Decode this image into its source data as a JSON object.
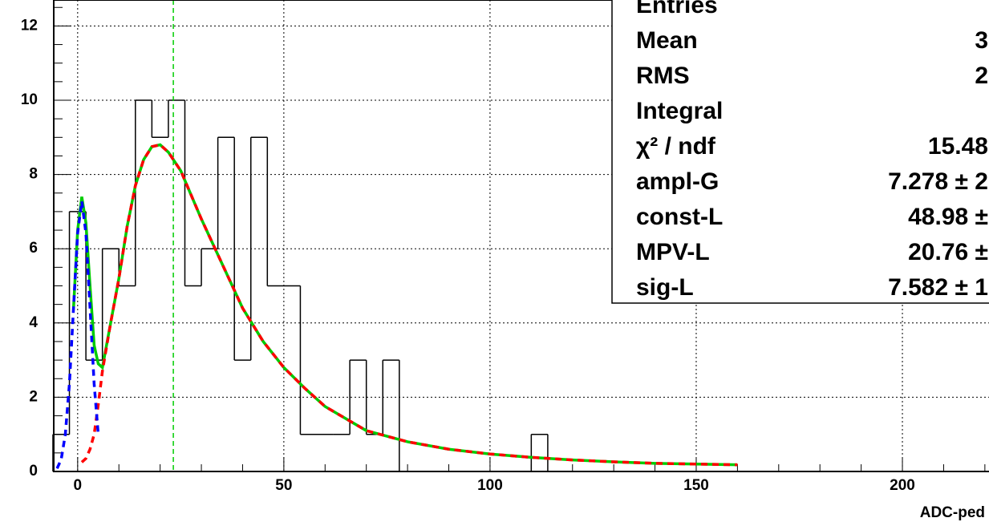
{
  "chart_data": {
    "type": "histogram",
    "bins": [
      -6,
      -2,
      2,
      6,
      10,
      14,
      18,
      22,
      26,
      30,
      34,
      38,
      42,
      46,
      50,
      54,
      58,
      62,
      66,
      70,
      74,
      78,
      82,
      86,
      90,
      94,
      98,
      102,
      106,
      110,
      114
    ],
    "counts": [
      1,
      7,
      3,
      6,
      5,
      10,
      9,
      10,
      5,
      6,
      9,
      3,
      9,
      5,
      5,
      1,
      1,
      1,
      3,
      1,
      3,
      0,
      0,
      0,
      0,
      0,
      0,
      0,
      0,
      1
    ],
    "color": "#000000",
    "xlim": [
      -5.8,
      221
    ],
    "ylim": [
      0,
      12.7
    ],
    "xticks": [
      0,
      50,
      100,
      150,
      200
    ],
    "yticks": [
      0,
      2,
      4,
      6,
      8,
      10,
      12
    ],
    "xminorticks": [
      10,
      20,
      30,
      40,
      60,
      70,
      80,
      90,
      110,
      120,
      130,
      140,
      160,
      170,
      180,
      190,
      210,
      220
    ],
    "yminorticks": [
      0.5,
      1,
      1.5,
      2.5,
      3,
      3.5,
      4.5,
      5,
      5.5,
      6.5,
      7,
      7.5,
      8.5,
      9,
      9.5,
      10.5,
      11,
      11.5,
      12.5
    ],
    "grid": true,
    "xlabel": "ADC-ped",
    "fits": [
      {
        "color": "#00cc00",
        "dash": false,
        "x": [
          -1,
          0,
          1,
          2,
          3,
          4,
          5,
          6,
          8,
          10,
          12,
          14,
          16,
          18,
          20,
          22,
          25,
          30,
          35,
          40,
          45,
          50,
          55,
          60,
          70,
          80,
          90,
          100,
          110,
          120,
          130,
          140,
          150,
          160
        ],
        "values": [
          4.4,
          6.5,
          7.4,
          6.7,
          5.0,
          3.4,
          2.9,
          2.8,
          4.0,
          5.2,
          6.6,
          7.7,
          8.4,
          8.75,
          8.8,
          8.6,
          8.1,
          6.8,
          5.6,
          4.4,
          3.5,
          2.8,
          2.25,
          1.75,
          1.1,
          0.8,
          0.6,
          0.47,
          0.38,
          0.31,
          0.26,
          0.22,
          0.2,
          0.18
        ]
      },
      {
        "color": "#ff0000",
        "dash": true,
        "x": [
          1,
          2,
          3,
          4,
          5,
          6,
          8,
          10,
          12,
          14,
          16,
          18,
          20,
          22,
          25,
          30,
          35,
          40,
          45,
          50,
          55,
          60,
          70,
          80,
          90,
          100,
          110,
          120,
          130,
          140,
          150,
          160
        ],
        "values": [
          0.25,
          0.35,
          0.6,
          1.0,
          1.8,
          2.7,
          4.0,
          5.2,
          6.6,
          7.7,
          8.4,
          8.75,
          8.8,
          8.6,
          8.1,
          6.8,
          5.6,
          4.4,
          3.5,
          2.8,
          2.25,
          1.75,
          1.1,
          0.8,
          0.6,
          0.47,
          0.38,
          0.31,
          0.26,
          0.22,
          0.2,
          0.18
        ]
      },
      {
        "color": "#0000ff",
        "dash": true,
        "x": [
          -5,
          -4,
          -3,
          -2,
          -1,
          0,
          1,
          2,
          3,
          4,
          5
        ],
        "values": [
          0.08,
          0.32,
          0.99,
          2.36,
          4.41,
          6.42,
          7.28,
          6.42,
          4.41,
          2.36,
          0.99
        ]
      }
    ],
    "marker_x": 23.2,
    "stats": {
      "labels": [
        "Entries",
        "Mean",
        "RMS",
        "Integral",
        "χ² / ndf",
        "ampl-G",
        "const-L",
        "MPV-L",
        "sig-L"
      ],
      "values": [
        "",
        "3",
        "2",
        "",
        "15.48",
        "7.278 ± 2",
        "48.98 ±",
        "20.76 ±",
        "7.582 ± 1"
      ]
    }
  }
}
